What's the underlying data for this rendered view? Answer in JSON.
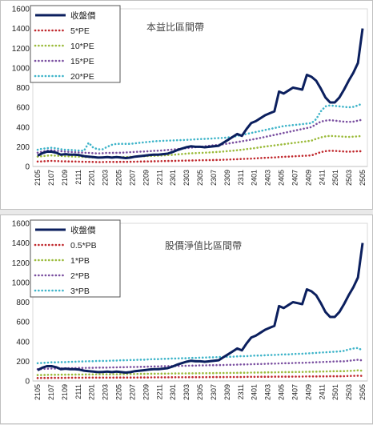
{
  "charts": [
    {
      "type": "line",
      "title": "本益比區間帶",
      "ylim": [
        0,
        1600
      ],
      "yticks": [
        0,
        200,
        400,
        600,
        800,
        1000,
        1200,
        1400,
        1600
      ],
      "xticks": [
        "2105",
        "2107",
        "2109",
        "2111",
        "2201",
        "2203",
        "2205",
        "2207",
        "2209",
        "2211",
        "2301",
        "2303",
        "2305",
        "2307",
        "2309",
        "2311",
        "2401",
        "2403",
        "2405",
        "2407",
        "2409",
        "2411",
        "2501",
        "2503",
        "2505"
      ],
      "legend": [
        "收盤價",
        "5*PE",
        "10*PE",
        "15*PE",
        "20*PE"
      ],
      "colors": [
        "#0b1f5e",
        "#c0282d",
        "#9bbb3b",
        "#7a4fa0",
        "#3eb4c9"
      ],
      "series": [
        {
          "values": [
            110,
            135,
            150,
            150,
            140,
            120,
            125,
            120,
            120,
            115,
            105,
            100,
            95,
            90,
            92,
            95,
            90,
            95,
            90,
            85,
            90,
            100,
            105,
            110,
            115,
            120,
            120,
            125,
            130,
            145,
            165,
            180,
            195,
            205,
            200,
            200,
            195,
            200,
            205,
            210,
            240,
            270,
            300,
            330,
            310,
            380,
            440,
            460,
            490,
            520,
            540,
            560,
            760,
            740,
            770,
            800,
            790,
            780,
            930,
            910,
            870,
            790,
            700,
            650,
            650,
            700,
            780,
            870,
            950,
            1050,
            1400
          ]
        },
        {
          "values": [
            50,
            52,
            55,
            57,
            55,
            53,
            52,
            51,
            50,
            49,
            48,
            47,
            46,
            45,
            45,
            46,
            46,
            46,
            47,
            47,
            48,
            49,
            50,
            51,
            52,
            53,
            54,
            55,
            56,
            57,
            58,
            59,
            60,
            61,
            62,
            63,
            64,
            65,
            66,
            67,
            68,
            70,
            72,
            74,
            76,
            78,
            80,
            82,
            85,
            88,
            90,
            92,
            95,
            98,
            100,
            102,
            105,
            108,
            110,
            112,
            130,
            145,
            155,
            160,
            158,
            155,
            152,
            150,
            152,
            154,
            155
          ]
        },
        {
          "values": [
            100,
            105,
            110,
            112,
            110,
            106,
            104,
            102,
            100,
            98,
            96,
            94,
            92,
            90,
            92,
            94,
            94,
            94,
            95,
            96,
            98,
            100,
            102,
            104,
            106,
            108,
            110,
            112,
            115,
            118,
            122,
            126,
            130,
            134,
            136,
            138,
            140,
            142,
            145,
            148,
            152,
            156,
            160,
            165,
            170,
            176,
            182,
            188,
            195,
            202,
            208,
            214,
            220,
            226,
            232,
            238,
            244,
            250,
            256,
            262,
            280,
            295,
            305,
            310,
            308,
            305,
            302,
            300,
            302,
            306,
            310
          ]
        },
        {
          "values": [
            140,
            150,
            160,
            165,
            160,
            155,
            150,
            148,
            145,
            142,
            140,
            138,
            135,
            132,
            135,
            138,
            138,
            139,
            140,
            142,
            145,
            148,
            150,
            152,
            155,
            158,
            160,
            163,
            167,
            171,
            176,
            181,
            186,
            191,
            196,
            200,
            205,
            210,
            215,
            220,
            226,
            232,
            240,
            248,
            256,
            264,
            272,
            280,
            290,
            300,
            310,
            320,
            330,
            340,
            350,
            360,
            370,
            380,
            390,
            400,
            430,
            455,
            465,
            470,
            465,
            460,
            455,
            452,
            455,
            465,
            475
          ]
        },
        {
          "values": [
            170,
            180,
            185,
            190,
            185,
            175,
            170,
            168,
            165,
            162,
            160,
            240,
            190,
            175,
            175,
            200,
            220,
            230,
            230,
            230,
            230,
            235,
            240,
            245,
            250,
            255,
            258,
            260,
            262,
            264,
            266,
            268,
            270,
            272,
            275,
            278,
            280,
            282,
            285,
            288,
            290,
            295,
            300,
            310,
            320,
            330,
            340,
            350,
            360,
            370,
            380,
            390,
            400,
            410,
            415,
            420,
            425,
            430,
            435,
            440,
            480,
            560,
            610,
            620,
            615,
            610,
            605,
            600,
            605,
            620,
            640
          ]
        }
      ]
    },
    {
      "type": "line",
      "title": "股價淨值比區間帶",
      "ylim": [
        0,
        1600
      ],
      "yticks": [
        0,
        200,
        400,
        600,
        800,
        1000,
        1200,
        1400,
        1600
      ],
      "xticks": [
        "2105",
        "2107",
        "2109",
        "2111",
        "2201",
        "2203",
        "2205",
        "2207",
        "2209",
        "2211",
        "2301",
        "2303",
        "2305",
        "2307",
        "2309",
        "2311",
        "2401",
        "2403",
        "2405",
        "2407",
        "2409",
        "2411",
        "2501",
        "2503",
        "2505"
      ],
      "legend": [
        "收盤價",
        "0.5*PB",
        "1*PB",
        "2*PB",
        "3*PB"
      ],
      "colors": [
        "#0b1f5e",
        "#c0282d",
        "#9bbb3b",
        "#7a4fa0",
        "#3eb4c9"
      ],
      "series": [
        {
          "values": [
            110,
            135,
            150,
            150,
            140,
            120,
            125,
            120,
            120,
            115,
            105,
            100,
            95,
            90,
            92,
            95,
            90,
            95,
            90,
            85,
            90,
            100,
            105,
            110,
            115,
            120,
            120,
            125,
            130,
            145,
            165,
            180,
            195,
            205,
            200,
            200,
            195,
            200,
            205,
            210,
            240,
            270,
            300,
            330,
            310,
            380,
            440,
            460,
            490,
            520,
            540,
            560,
            760,
            740,
            770,
            800,
            790,
            780,
            930,
            910,
            870,
            790,
            700,
            650,
            650,
            700,
            780,
            870,
            950,
            1050,
            1400
          ]
        },
        {
          "values": [
            30,
            31,
            31,
            32,
            32,
            32,
            32,
            33,
            33,
            33,
            33,
            34,
            34,
            34,
            34,
            34,
            34,
            35,
            35,
            35,
            35,
            35,
            36,
            36,
            36,
            37,
            37,
            37,
            37,
            38,
            38,
            38,
            38,
            39,
            39,
            39,
            39,
            40,
            40,
            40,
            40,
            41,
            41,
            41,
            41,
            42,
            42,
            42,
            43,
            43,
            43,
            44,
            44,
            44,
            44,
            45,
            45,
            45,
            46,
            46,
            46,
            47,
            47,
            48,
            48,
            48,
            49,
            50,
            52,
            54,
            52
          ]
        },
        {
          "values": [
            60,
            61,
            62,
            63,
            63,
            64,
            64,
            65,
            65,
            66,
            66,
            67,
            67,
            68,
            68,
            68,
            69,
            69,
            70,
            70,
            71,
            71,
            72,
            72,
            73,
            74,
            74,
            75,
            75,
            76,
            76,
            77,
            77,
            78,
            78,
            79,
            79,
            80,
            80,
            81,
            81,
            82,
            82,
            83,
            84,
            84,
            85,
            86,
            86,
            87,
            88,
            88,
            89,
            90,
            90,
            91,
            92,
            92,
            93,
            94,
            95,
            96,
            97,
            98,
            99,
            100,
            100,
            102,
            104,
            108,
            104
          ]
        },
        {
          "values": [
            120,
            122,
            124,
            126,
            126,
            128,
            128,
            130,
            130,
            132,
            132,
            134,
            134,
            136,
            136,
            136,
            138,
            138,
            140,
            140,
            142,
            142,
            144,
            144,
            146,
            148,
            148,
            150,
            150,
            152,
            152,
            154,
            154,
            156,
            156,
            158,
            158,
            160,
            160,
            162,
            162,
            164,
            164,
            166,
            168,
            168,
            170,
            172,
            172,
            174,
            176,
            176,
            178,
            180,
            180,
            182,
            184,
            184,
            186,
            188,
            190,
            192,
            194,
            196,
            198,
            200,
            200,
            205,
            210,
            215,
            208
          ]
        },
        {
          "values": [
            180,
            183,
            186,
            189,
            189,
            192,
            192,
            195,
            195,
            198,
            198,
            201,
            201,
            204,
            204,
            204,
            207,
            207,
            210,
            210,
            213,
            213,
            216,
            216,
            219,
            222,
            222,
            225,
            225,
            228,
            228,
            231,
            231,
            234,
            234,
            237,
            237,
            240,
            240,
            243,
            243,
            246,
            246,
            249,
            252,
            252,
            255,
            258,
            258,
            261,
            264,
            264,
            267,
            270,
            270,
            273,
            276,
            276,
            279,
            282,
            285,
            288,
            291,
            294,
            297,
            300,
            305,
            320,
            330,
            335,
            310
          ]
        }
      ]
    }
  ]
}
